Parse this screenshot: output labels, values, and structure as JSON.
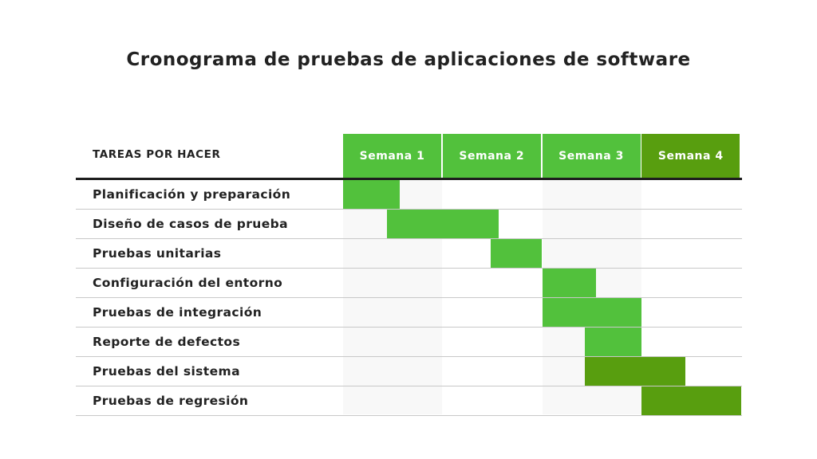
{
  "chart_data": {
    "type": "gantt",
    "title": "Cronograma de pruebas de aplicaciones de software",
    "task_header": "TAREAS POR HACER",
    "weeks": [
      {
        "label": "Semana 1",
        "color": "#52c13c"
      },
      {
        "label": "Semana 2",
        "color": "#52c13c"
      },
      {
        "label": "Semana 3",
        "color": "#52c13c"
      },
      {
        "label": "Semana 4",
        "color": "#589e0f"
      }
    ],
    "tasks": [
      {
        "label": "Planificación y preparación",
        "start_week": 0,
        "end_week": 0.57,
        "color": "#52c13c"
      },
      {
        "label": "Diseño de casos de prueba",
        "start_week": 0.44,
        "end_week": 1.56,
        "color": "#52c13c"
      },
      {
        "label": "Pruebas unitarias",
        "start_week": 1.48,
        "end_week": 2.0,
        "color": "#52c13c"
      },
      {
        "label": "Configuración del entorno",
        "start_week": 2.0,
        "end_week": 2.54,
        "color": "#52c13c"
      },
      {
        "label": "Pruebas de integración",
        "start_week": 2.0,
        "end_week": 3.0,
        "color": "#52c13c"
      },
      {
        "label": "Reporte de defectos",
        "start_week": 2.43,
        "end_week": 3.0,
        "color": "#52c13c"
      },
      {
        "label": "Pruebas del sistema",
        "start_week": 2.43,
        "end_week": 3.44,
        "color": "#589e0f"
      },
      {
        "label": "Pruebas de regresión",
        "start_week": 3.0,
        "end_week": 4.0,
        "color": "#589e0f"
      }
    ]
  }
}
